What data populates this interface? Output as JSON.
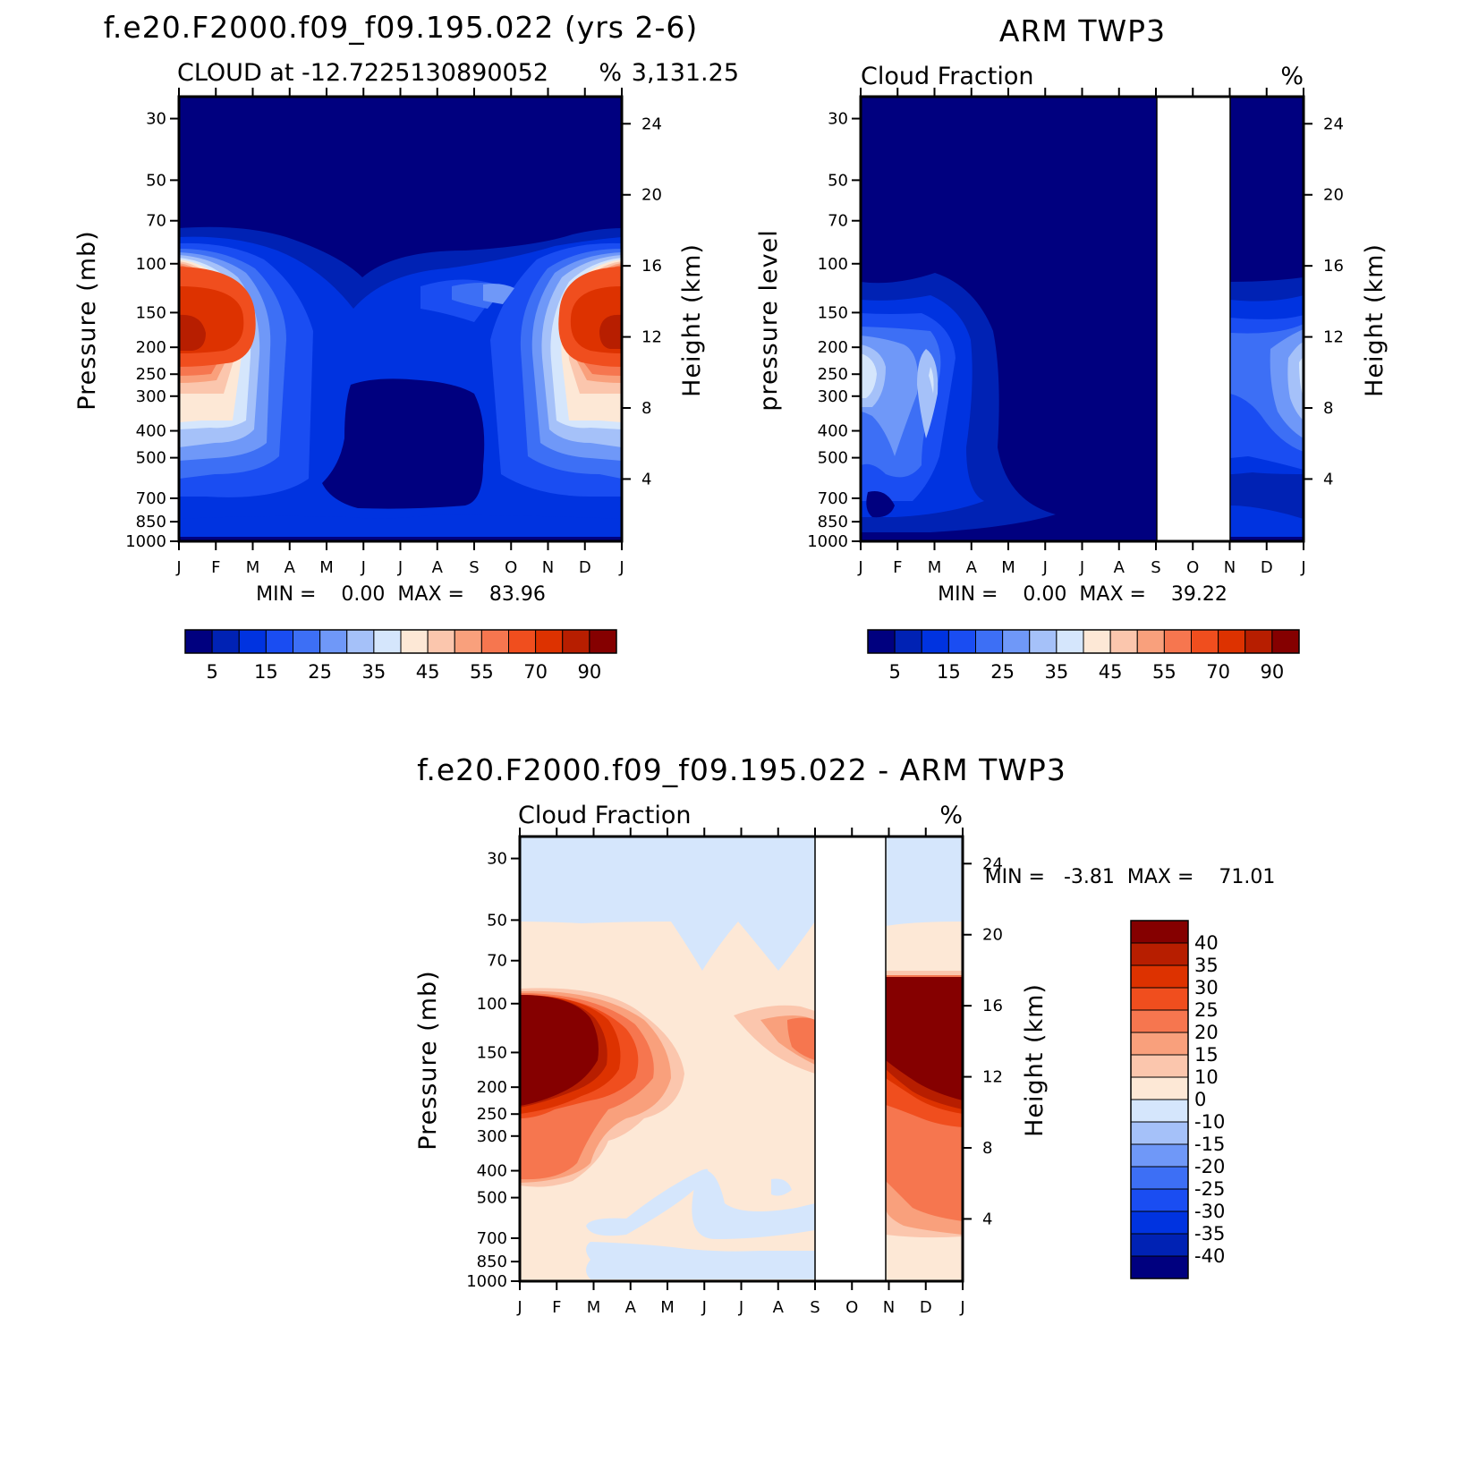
{
  "chart_data": [
    {
      "type": "heatmap",
      "title": "f.e20.F2000.f09_f09.195.022 (yrs 2-6)",
      "subtitle_left": "CLOUD at -12.7225130890052",
      "subtitle_right": "%",
      "subtitle_coords": "3,131.25",
      "ylabel": "Pressure (mb)",
      "ylabel_right": "Height (km)",
      "months": [
        "J",
        "F",
        "M",
        "A",
        "M",
        "J",
        "J",
        "A",
        "S",
        "O",
        "N",
        "D",
        "J"
      ],
      "pressure_ticks": [
        "30",
        "50",
        "70",
        "100",
        "150",
        "200",
        "250",
        "300",
        "400",
        "500",
        "700",
        "850",
        "1000"
      ],
      "height_ticks": [
        "24",
        "20",
        "16",
        "12",
        "8",
        "4"
      ],
      "stats": "MIN =    0.00  MAX =    83.96",
      "colorbar_labels": [
        "5",
        "15",
        "25",
        "35",
        "45",
        "55",
        "70",
        "90"
      ],
      "colorbar_levels": [
        5,
        10,
        15,
        20,
        25,
        30,
        35,
        40,
        45,
        50,
        55,
        60,
        70,
        80,
        90
      ],
      "missing_months": []
    },
    {
      "type": "heatmap",
      "title": "ARM TWP3",
      "subtitle_left": "Cloud Fraction",
      "subtitle_right": "%",
      "ylabel": "pressure level",
      "ylabel_right": "Height (km)",
      "months": [
        "J",
        "F",
        "M",
        "A",
        "M",
        "J",
        "J",
        "A",
        "S",
        "O",
        "N",
        "D",
        "J"
      ],
      "pressure_ticks": [
        "30",
        "50",
        "70",
        "100",
        "150",
        "200",
        "250",
        "300",
        "400",
        "500",
        "700",
        "850",
        "1000"
      ],
      "height_ticks": [
        "24",
        "20",
        "16",
        "12",
        "8",
        "4"
      ],
      "stats": "MIN =    0.00  MAX =    39.22",
      "colorbar_labels": [
        "5",
        "15",
        "25",
        "35",
        "45",
        "55",
        "70",
        "90"
      ],
      "colorbar_levels": [
        5,
        10,
        15,
        20,
        25,
        30,
        35,
        40,
        45,
        50,
        55,
        60,
        70,
        80,
        90
      ],
      "missing_months": [
        "September-November"
      ]
    },
    {
      "type": "heatmap",
      "title": "f.e20.F2000.f09_f09.195.022 - ARM TWP3",
      "subtitle_left": "Cloud Fraction",
      "subtitle_right": "%",
      "ylabel": "Pressure (mb)",
      "ylabel_right": "Height (km)",
      "months": [
        "J",
        "F",
        "M",
        "A",
        "M",
        "J",
        "J",
        "A",
        "S",
        "O",
        "N",
        "D",
        "J"
      ],
      "pressure_ticks": [
        "30",
        "50",
        "70",
        "100",
        "150",
        "200",
        "250",
        "300",
        "400",
        "500",
        "700",
        "850",
        "1000"
      ],
      "height_ticks": [
        "24",
        "20",
        "16",
        "12",
        "8",
        "4"
      ],
      "stats": "MIN =   -3.81  MAX =    71.01",
      "colorbar_labels": [
        "40",
        "35",
        "30",
        "25",
        "20",
        "15",
        "10",
        "0",
        "-10",
        "-15",
        "-20",
        "-25",
        "-30",
        "-35",
        "-40"
      ],
      "colorbar_levels": [
        -40,
        -35,
        -30,
        -25,
        -20,
        -15,
        -10,
        0,
        10,
        15,
        20,
        25,
        30,
        35,
        40
      ],
      "missing_months": [
        "September-November"
      ]
    }
  ],
  "colors": {
    "scale": [
      "#00007f",
      "#0022b4",
      "#0033e0",
      "#1a4df2",
      "#3d6ff5",
      "#6f98f8",
      "#a5c1f9",
      "#d5e6fc",
      "#fde8d6",
      "#fbc6ad",
      "#f9a07c",
      "#f6764f",
      "#f04e1e",
      "#dd3200",
      "#b71e00",
      "#850000"
    ],
    "diff_scale": [
      "#850000",
      "#b71e00",
      "#dd3200",
      "#f04e1e",
      "#f6764f",
      "#f9a07c",
      "#fbc6ad",
      "#fde8d6",
      "#d5e6fc",
      "#a5c1f9",
      "#6f98f8",
      "#3d6ff5",
      "#1a4df2",
      "#0033e0",
      "#0022b4",
      "#00007f"
    ]
  }
}
